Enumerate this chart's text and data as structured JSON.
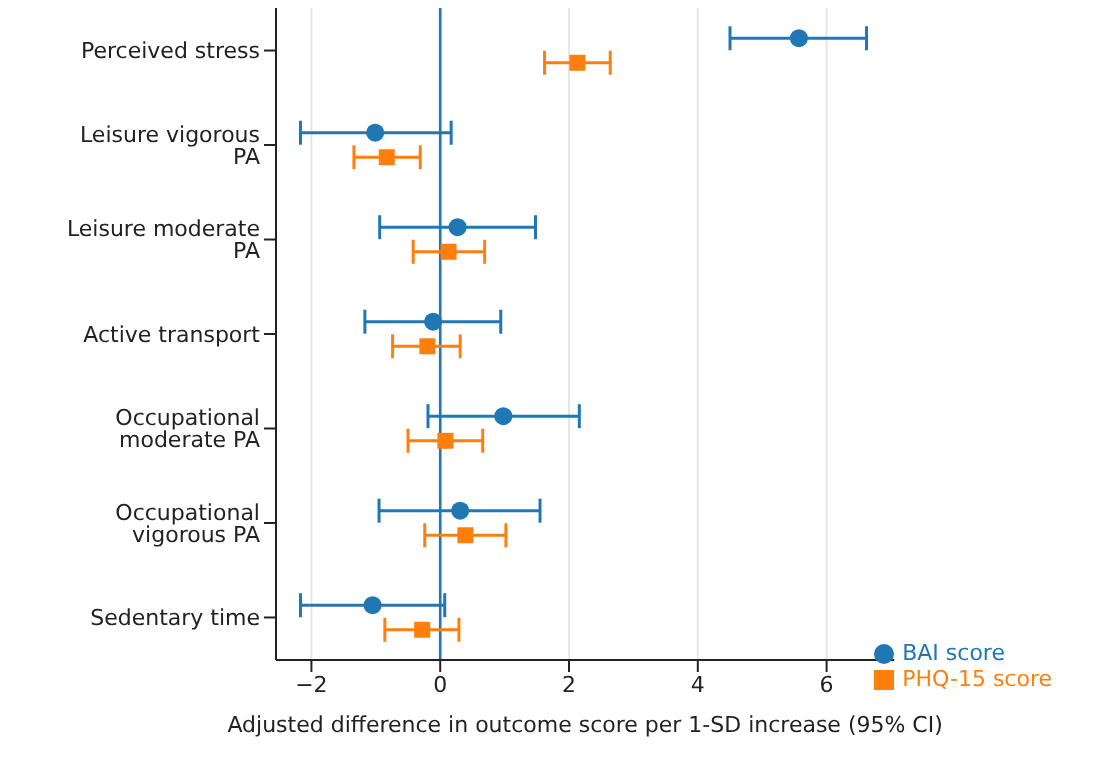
{
  "chart_data": {
    "type": "scatter",
    "xlabel": "Adjusted difference in outcome score per 1-SD increase (95% CI)",
    "categories": [
      "Perceived stress",
      "Leisure vigorous PA",
      "Leisure moderate PA",
      "Active transport",
      "Occupational moderate PA",
      "Occupational vigorous PA",
      "Sedentary time"
    ],
    "orientation": "horizontal",
    "series": [
      {
        "name": "BAI score",
        "color": "#1f77b4",
        "marker": "circle",
        "values": [
          5.57,
          -1.01,
          0.27,
          -0.11,
          0.98,
          0.31,
          -1.05
        ],
        "errors": [
          [
            4.5,
            6.62
          ],
          [
            -2.17,
            0.17
          ],
          [
            -0.94,
            1.48
          ],
          [
            -1.17,
            0.94
          ],
          [
            -0.19,
            2.16
          ],
          [
            -0.95,
            1.55
          ],
          [
            -2.17,
            0.07
          ]
        ]
      },
      {
        "name": "PHQ-15 score",
        "color": "#ff7f0e",
        "marker": "square",
        "values": [
          2.13,
          -0.83,
          0.13,
          -0.2,
          0.08,
          0.39,
          -0.28
        ],
        "errors": [
          [
            1.62,
            2.64
          ],
          [
            -1.34,
            -0.31
          ],
          [
            -0.42,
            0.69
          ],
          [
            -0.74,
            0.31
          ],
          [
            -0.5,
            0.66
          ],
          [
            -0.24,
            1.02
          ],
          [
            -0.86,
            0.29
          ]
        ]
      }
    ],
    "xlim": [
      -2.55,
      7.05
    ],
    "xticks": [
      {
        "value": -2,
        "label": "−2"
      },
      {
        "value": 0,
        "label": "0"
      },
      2,
      4,
      6
    ],
    "ref_lines": [
      {
        "axis": "x",
        "value": 0,
        "color": "#1f77b4"
      }
    ],
    "grid": "x",
    "legend": "bottom right"
  }
}
